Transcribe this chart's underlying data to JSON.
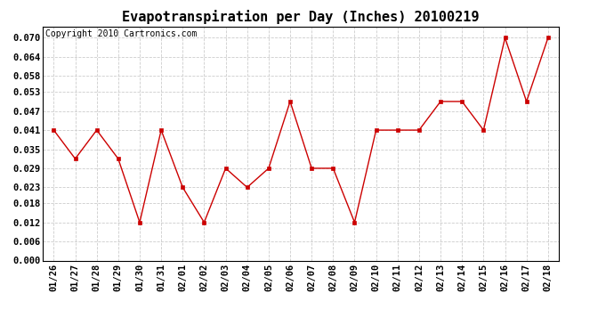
{
  "title": "Evapotranspiration per Day (Inches) 20100219",
  "copyright_text": "Copyright 2010 Cartronics.com",
  "x_labels": [
    "01/26",
    "01/27",
    "01/28",
    "01/29",
    "01/30",
    "01/31",
    "02/01",
    "02/02",
    "02/03",
    "02/04",
    "02/05",
    "02/06",
    "02/07",
    "02/08",
    "02/09",
    "02/10",
    "02/11",
    "02/12",
    "02/13",
    "02/14",
    "02/15",
    "02/16",
    "02/17",
    "02/18"
  ],
  "y_values": [
    0.041,
    0.032,
    0.041,
    0.032,
    0.012,
    0.041,
    0.023,
    0.012,
    0.029,
    0.023,
    0.029,
    0.05,
    0.029,
    0.029,
    0.012,
    0.041,
    0.041,
    0.041,
    0.05,
    0.05,
    0.041,
    0.07,
    0.05,
    0.07
  ],
  "line_color": "#cc0000",
  "marker": "s",
  "marker_size": 2.5,
  "ylim": [
    0.0,
    0.0735
  ],
  "yticks": [
    0.0,
    0.006,
    0.012,
    0.018,
    0.023,
    0.029,
    0.035,
    0.041,
    0.047,
    0.053,
    0.058,
    0.064,
    0.07
  ],
  "bg_color": "#ffffff",
  "grid_color": "#cccccc",
  "title_fontsize": 11,
  "copyright_fontsize": 7,
  "tick_fontsize": 7.5
}
